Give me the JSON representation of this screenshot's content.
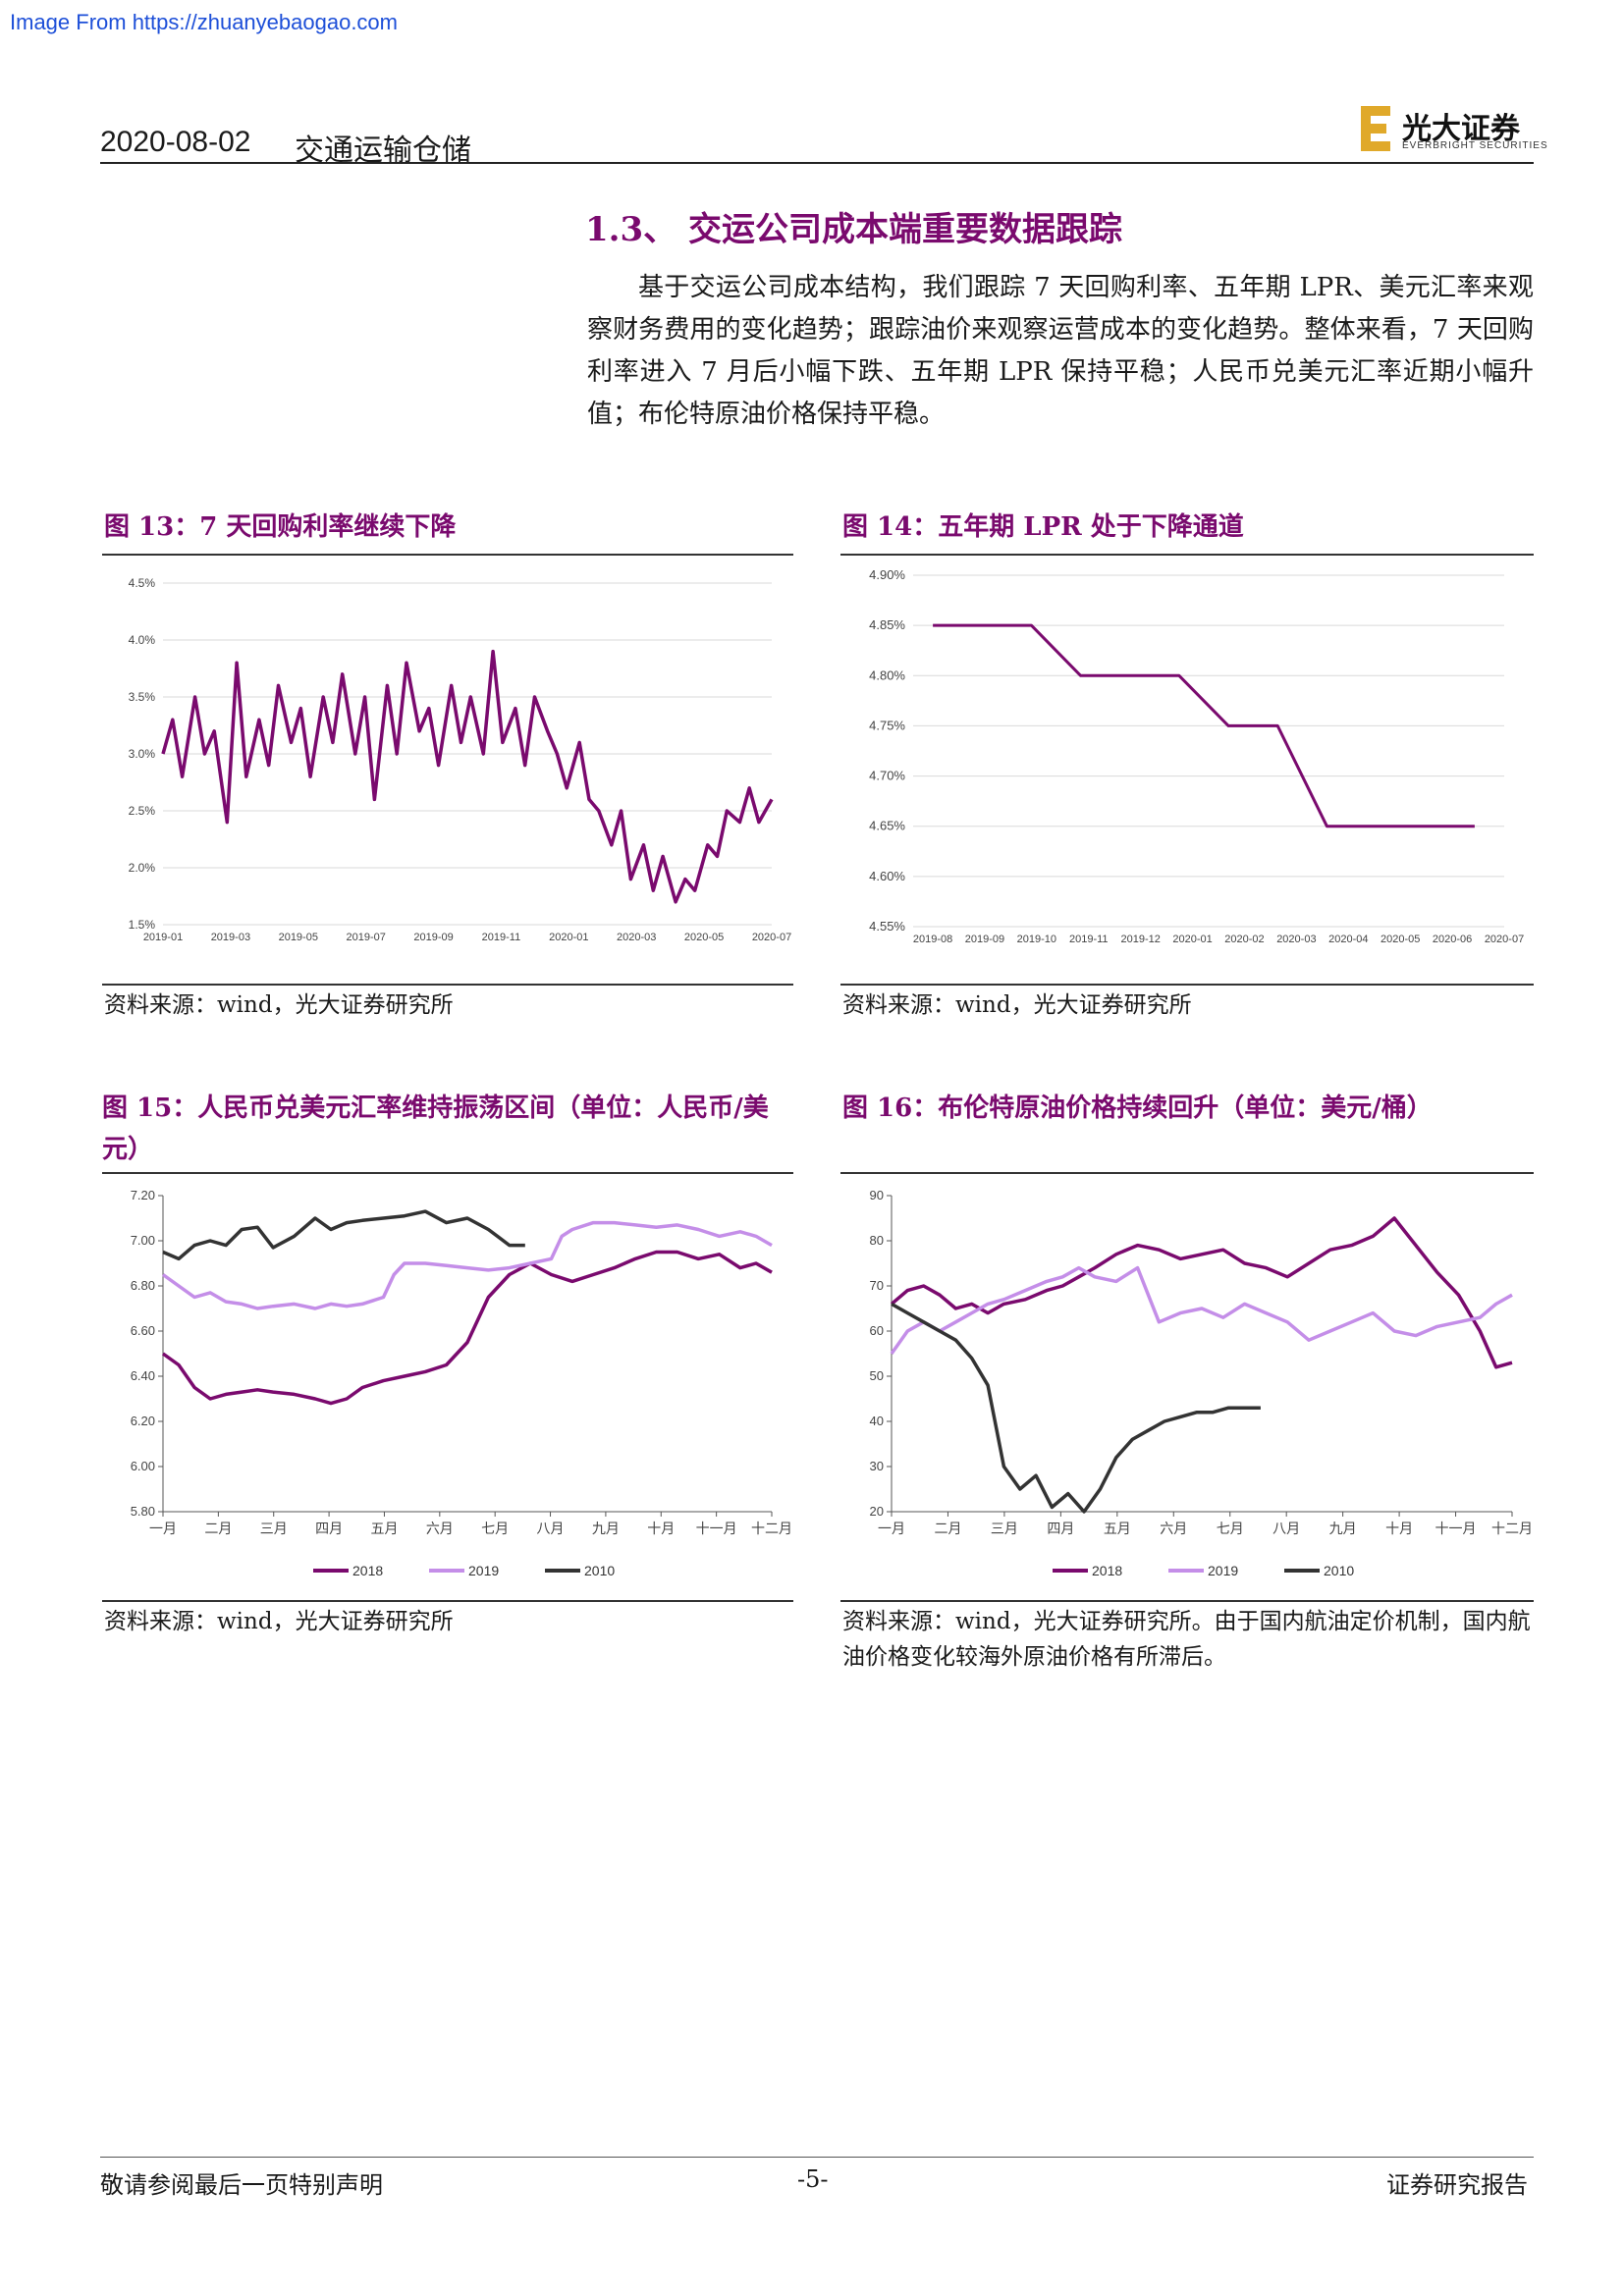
{
  "watermark": "Image From https://zhuanyebaogao.com",
  "header": {
    "date": "2020-08-02",
    "sector": "交通运输仓储",
    "logo_cn": "光大证券",
    "logo_en": "EVERBRIGHT SECURITIES"
  },
  "section": {
    "title": "1.3、 交运公司成本端重要数据跟踪",
    "body": "基于交运公司成本结构，我们跟踪 7 天回购利率、五年期 LPR、美元汇率来观察财务费用的变化趋势；跟踪油价来观察运营成本的变化趋势。整体来看，7 天回购利率进入 7 月后小幅下跌、五年期 LPR 保持平稳；人民币兑美元汇率近期小幅升值；布伦特原油价格保持平稳。"
  },
  "figures": {
    "fig13": {
      "title": "图 13：7 天回购利率继续下降",
      "source": "资料来源：wind，光大证券研究所"
    },
    "fig14": {
      "title": "图 14：五年期 LPR 处于下降通道",
      "source": "资料来源：wind，光大证券研究所"
    },
    "fig15": {
      "title": "图 15：人民币兑美元汇率维持振荡区间（单位：人民币/美元）",
      "source": "资料来源：wind，光大证券研究所"
    },
    "fig16": {
      "title": "图 16：布伦特原油价格持续回升（单位：美元/桶）",
      "source": "资料来源：wind，光大证券研究所。由于国内航油定价机制，国内航油价格变化较海外原油价格有所滞后。"
    }
  },
  "footer": {
    "left": "敬请参阅最后一页特别声明",
    "page": "-5-",
    "right": "证券研究报告"
  },
  "colors": {
    "dark_purple": "#7a0a6e",
    "light_purple": "#c48ee8",
    "dark_gray": "#333333"
  },
  "chart_data": [
    {
      "id": "fig13",
      "type": "line",
      "x_ticks": [
        "2019-01",
        "2019-03",
        "2019-05",
        "2019-07",
        "2019-09",
        "2019-11",
        "2020-01",
        "2020-03",
        "2020-05",
        "2020-07"
      ],
      "y_ticks": [
        "1.5%",
        "2.0%",
        "2.5%",
        "3.0%",
        "3.5%",
        "4.0%",
        "4.5%"
      ],
      "ylim": [
        1.5,
        4.5
      ],
      "series": [
        {
          "color": "#7a0a6e",
          "x": [
            0,
            0.3,
            0.6,
            1,
            1.3,
            1.6,
            2,
            2.3,
            2.6,
            3,
            3.3,
            3.6,
            4,
            4.3,
            4.6,
            5,
            5.3,
            5.6,
            6,
            6.3,
            6.6,
            7,
            7.3,
            7.6,
            8,
            8.3,
            8.6,
            9,
            9.3,
            9.6,
            10,
            10.3,
            10.6,
            11,
            11.3,
            11.6,
            12,
            12.3,
            12.6,
            13,
            13.3,
            13.6,
            14,
            14.3,
            14.6,
            15,
            15.3,
            15.6,
            16,
            16.3,
            16.6,
            17,
            17.3,
            17.6,
            18,
            18.3,
            18.6,
            19
          ],
          "y": [
            3.0,
            3.3,
            2.8,
            3.5,
            3.0,
            3.2,
            2.4,
            3.8,
            2.8,
            3.3,
            2.9,
            3.6,
            3.1,
            3.4,
            2.8,
            3.5,
            3.1,
            3.7,
            3.0,
            3.5,
            2.6,
            3.6,
            3.0,
            3.8,
            3.2,
            3.4,
            2.9,
            3.6,
            3.1,
            3.5,
            3.0,
            3.9,
            3.1,
            3.4,
            2.9,
            3.5,
            3.2,
            3.0,
            2.7,
            3.1,
            2.6,
            2.5,
            2.2,
            2.5,
            1.9,
            2.2,
            1.8,
            2.1,
            1.7,
            1.9,
            1.8,
            2.2,
            2.1,
            2.5,
            2.4,
            2.7,
            2.4,
            2.6
          ]
        }
      ]
    },
    {
      "id": "fig14",
      "type": "line",
      "x_ticks": [
        "2019-08",
        "2019-09",
        "2019-10",
        "2019-11",
        "2019-12",
        "2020-01",
        "2020-02",
        "2020-03",
        "2020-04",
        "2020-05",
        "2020-06",
        "2020-07"
      ],
      "y_ticks": [
        "4.55%",
        "4.60%",
        "4.65%",
        "4.70%",
        "4.75%",
        "4.80%",
        "4.85%",
        "4.90%"
      ],
      "ylim": [
        4.55,
        4.9
      ],
      "series": [
        {
          "color": "#7a0a6e",
          "x": [
            0,
            1,
            2,
            3,
            4,
            5,
            6,
            7,
            8,
            9,
            10,
            11
          ],
          "y": [
            4.85,
            4.85,
            4.85,
            4.8,
            4.8,
            4.8,
            4.75,
            4.75,
            4.65,
            4.65,
            4.65,
            4.65
          ]
        }
      ]
    },
    {
      "id": "fig15",
      "type": "line",
      "x_ticks": [
        "一月",
        "二月",
        "三月",
        "四月",
        "五月",
        "六月",
        "七月",
        "八月",
        "九月",
        "十月",
        "十一月",
        "十二月"
      ],
      "y_ticks": [
        "5.80",
        "6.00",
        "6.20",
        "6.40",
        "6.60",
        "6.80",
        "7.00",
        "7.20"
      ],
      "ylim": [
        5.8,
        7.2
      ],
      "legend": [
        "2018",
        "2019",
        "2010"
      ],
      "series": [
        {
          "name": "2018",
          "color": "#7a0a6e",
          "x": [
            0,
            0.3,
            0.6,
            0.9,
            1.2,
            1.5,
            1.8,
            2.1,
            2.5,
            2.9,
            3.2,
            3.5,
            3.8,
            4.2,
            4.6,
            5.0,
            5.4,
            5.8,
            6.0,
            6.2,
            6.4,
            6.6,
            7.0,
            7.4,
            7.8,
            8.2,
            8.6,
            9.0,
            9.4,
            9.8,
            10.2,
            10.6,
            11.0,
            11.3,
            11.6
          ],
          "y": [
            6.5,
            6.45,
            6.35,
            6.3,
            6.32,
            6.33,
            6.34,
            6.33,
            6.32,
            6.3,
            6.28,
            6.3,
            6.35,
            6.38,
            6.4,
            6.42,
            6.45,
            6.55,
            6.65,
            6.75,
            6.8,
            6.85,
            6.9,
            6.85,
            6.82,
            6.85,
            6.88,
            6.92,
            6.95,
            6.95,
            6.92,
            6.94,
            6.88,
            6.9,
            6.86
          ]
        },
        {
          "name": "2019",
          "color": "#c48ee8",
          "x": [
            0,
            0.3,
            0.6,
            0.9,
            1.2,
            1.5,
            1.8,
            2.1,
            2.5,
            2.9,
            3.2,
            3.5,
            3.8,
            4.2,
            4.4,
            4.6,
            5.0,
            5.4,
            5.8,
            6.2,
            6.6,
            7.0,
            7.4,
            7.6,
            7.8,
            8.2,
            8.6,
            9.0,
            9.4,
            9.8,
            10.2,
            10.6,
            11.0,
            11.3,
            11.6
          ],
          "y": [
            6.85,
            6.8,
            6.75,
            6.77,
            6.73,
            6.72,
            6.7,
            6.71,
            6.72,
            6.7,
            6.72,
            6.71,
            6.72,
            6.75,
            6.85,
            6.9,
            6.9,
            6.89,
            6.88,
            6.87,
            6.88,
            6.9,
            6.92,
            7.02,
            7.05,
            7.08,
            7.08,
            7.07,
            7.06,
            7.07,
            7.05,
            7.02,
            7.04,
            7.02,
            6.98
          ]
        },
        {
          "name": "2010",
          "color": "#333333",
          "x": [
            0,
            0.3,
            0.6,
            0.9,
            1.2,
            1.5,
            1.8,
            2.1,
            2.5,
            2.9,
            3.2,
            3.5,
            3.8,
            4.2,
            4.6,
            5.0,
            5.4,
            5.8,
            6.2,
            6.6,
            6.9
          ],
          "y": [
            6.95,
            6.92,
            6.98,
            7.0,
            6.98,
            7.05,
            7.06,
            6.97,
            7.02,
            7.1,
            7.05,
            7.08,
            7.09,
            7.1,
            7.11,
            7.13,
            7.08,
            7.1,
            7.05,
            6.98,
            6.98
          ]
        }
      ]
    },
    {
      "id": "fig16",
      "type": "line",
      "x_ticks": [
        "一月",
        "二月",
        "三月",
        "四月",
        "五月",
        "六月",
        "七月",
        "八月",
        "九月",
        "十月",
        "十一月",
        "十二月"
      ],
      "y_ticks": [
        "20",
        "30",
        "40",
        "50",
        "60",
        "70",
        "80",
        "90"
      ],
      "ylim": [
        20,
        90
      ],
      "legend": [
        "2018",
        "2019",
        "2010"
      ],
      "series": [
        {
          "name": "2018",
          "color": "#7a0a6e",
          "x": [
            0,
            0.3,
            0.6,
            0.9,
            1.2,
            1.5,
            1.8,
            2.1,
            2.5,
            2.9,
            3.2,
            3.5,
            3.8,
            4.2,
            4.6,
            5.0,
            5.4,
            5.8,
            6.2,
            6.6,
            7.0,
            7.4,
            7.8,
            8.2,
            8.6,
            9.0,
            9.4,
            9.8,
            10.2,
            10.6,
            11.0,
            11.3,
            11.6
          ],
          "y": [
            66,
            69,
            70,
            68,
            65,
            66,
            64,
            66,
            67,
            69,
            70,
            72,
            74,
            77,
            79,
            78,
            76,
            77,
            78,
            75,
            74,
            72,
            75,
            78,
            79,
            81,
            85,
            79,
            73,
            68,
            60,
            52,
            53
          ]
        },
        {
          "name": "2019",
          "color": "#c48ee8",
          "x": [
            0,
            0.3,
            0.6,
            0.9,
            1.2,
            1.5,
            1.8,
            2.1,
            2.5,
            2.9,
            3.2,
            3.5,
            3.8,
            4.2,
            4.6,
            5.0,
            5.4,
            5.8,
            6.2,
            6.6,
            7.0,
            7.4,
            7.8,
            8.2,
            8.6,
            9.0,
            9.4,
            9.8,
            10.2,
            10.6,
            11.0,
            11.3,
            11.6
          ],
          "y": [
            55,
            60,
            62,
            60,
            62,
            64,
            66,
            67,
            69,
            71,
            72,
            74,
            72,
            71,
            74,
            62,
            64,
            65,
            63,
            66,
            64,
            62,
            58,
            60,
            62,
            64,
            60,
            59,
            61,
            62,
            63,
            66,
            68
          ]
        },
        {
          "name": "2010",
          "color": "#333333",
          "x": [
            0,
            0.3,
            0.6,
            0.9,
            1.2,
            1.5,
            1.8,
            2.1,
            2.4,
            2.7,
            3.0,
            3.3,
            3.6,
            3.9,
            4.2,
            4.5,
            4.8,
            5.1,
            5.4,
            5.7,
            6.0,
            6.3,
            6.6,
            6.9
          ],
          "y": [
            66,
            64,
            62,
            60,
            58,
            54,
            48,
            30,
            25,
            28,
            21,
            24,
            20,
            25,
            32,
            36,
            38,
            40,
            41,
            42,
            42,
            43,
            43,
            43
          ]
        }
      ]
    }
  ]
}
